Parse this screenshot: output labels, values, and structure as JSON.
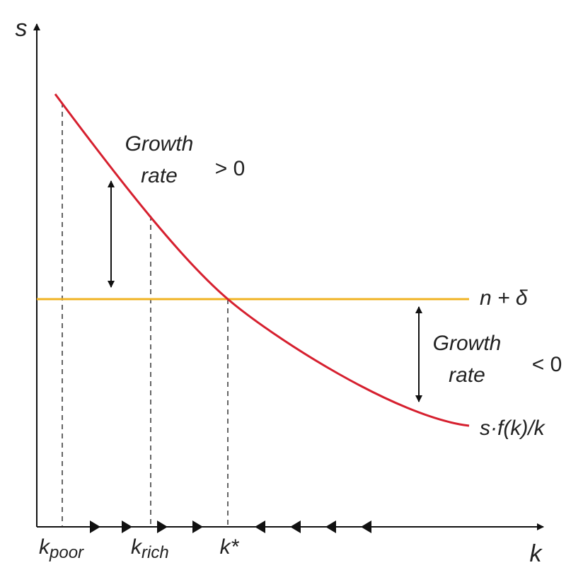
{
  "axes": {
    "y_label": "s",
    "x_label": "k"
  },
  "annotations": {
    "upper": {
      "line1": "Growth",
      "line2": "rate",
      "sign": "> 0"
    },
    "lower": {
      "line1": "Growth",
      "line2": "rate",
      "sign": "< 0"
    }
  },
  "curves": {
    "horizontal": "n + δ",
    "declining": "s·f(k)/k"
  },
  "x_markers": [
    {
      "base": "k",
      "sub": "poor"
    },
    {
      "base": "k",
      "sub": "rich"
    },
    {
      "base": "k*"
    }
  ]
}
